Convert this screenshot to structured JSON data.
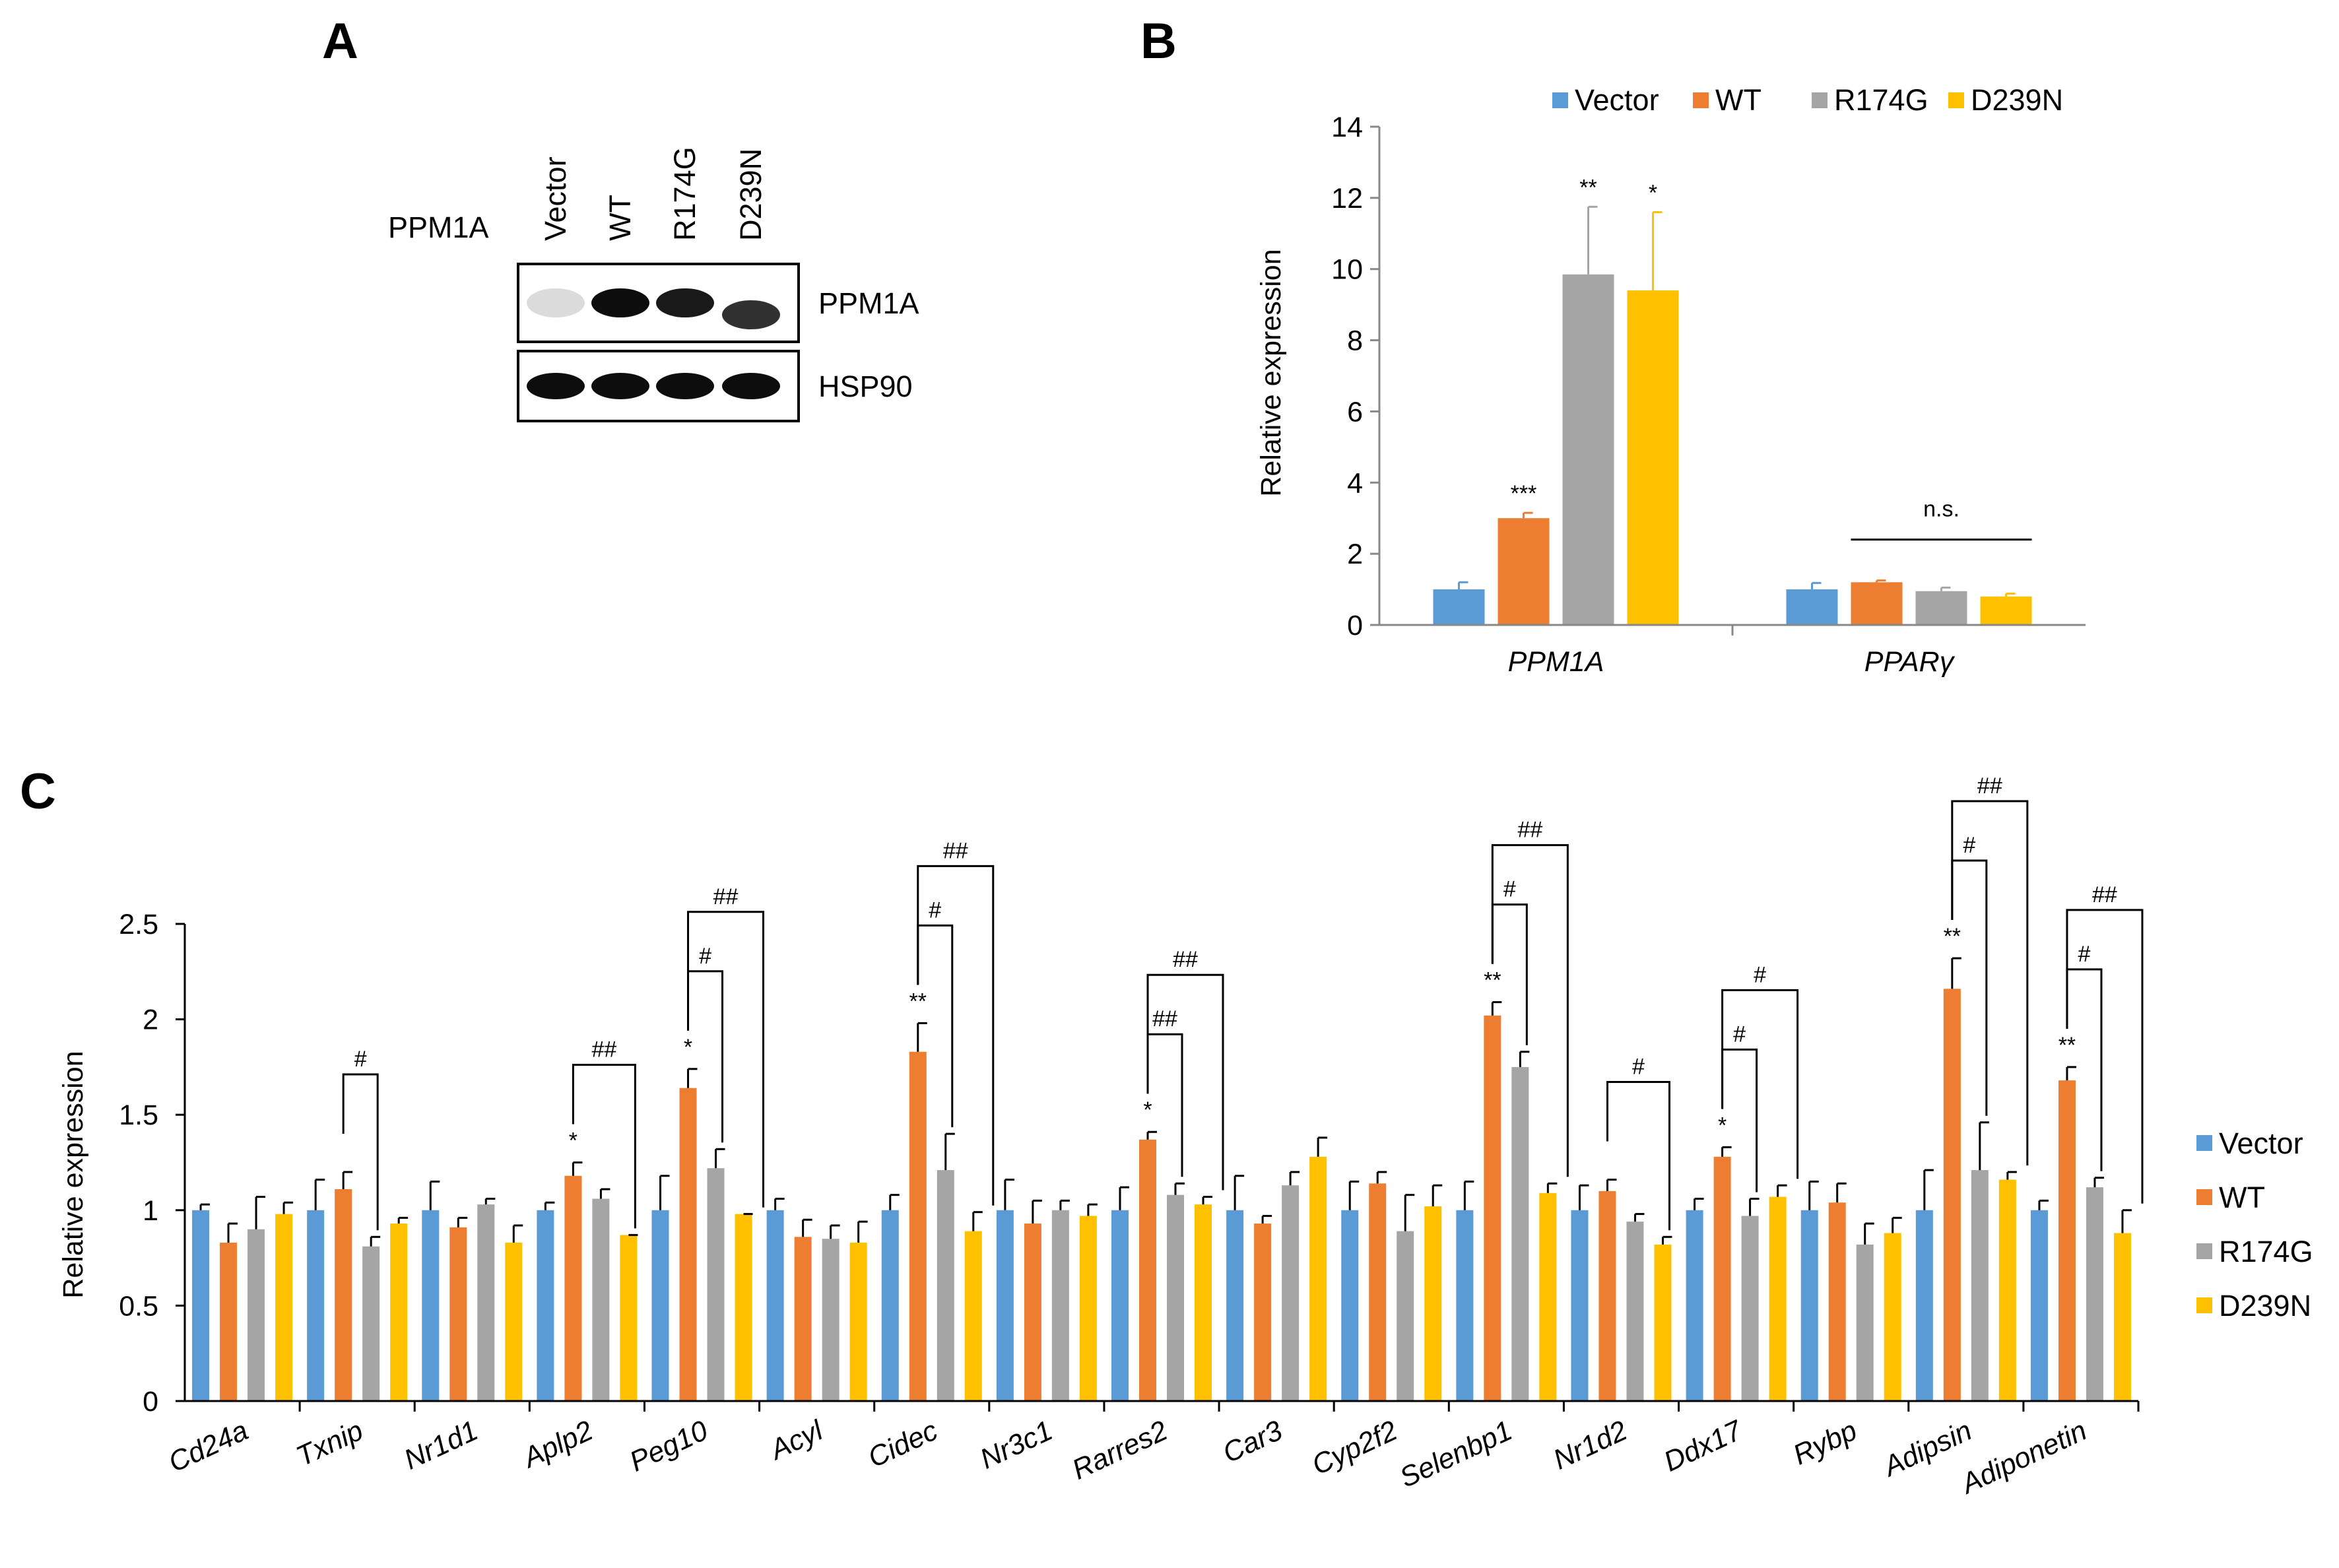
{
  "colors": {
    "Vector": "#5B9BD5",
    "WT": "#ED7D31",
    "R174G": "#A5A5A5",
    "D239N": "#FFC000"
  },
  "panel_a": {
    "letter": "A",
    "row_label": "PPM1A",
    "lanes": [
      "Vector",
      "WT",
      "R174G",
      "D239N"
    ],
    "blots": [
      {
        "label": "PPM1A",
        "intensity": [
          0.15,
          1.0,
          0.95,
          0.85
        ]
      },
      {
        "label": "HSP90",
        "intensity": [
          1.0,
          1.0,
          1.0,
          1.0
        ]
      }
    ]
  },
  "chart_data": [
    {
      "panel": "B",
      "type": "bar",
      "ylabel": "Relative expression",
      "ylim": [
        0,
        14
      ],
      "yticks": [
        0,
        2,
        4,
        6,
        8,
        10,
        12,
        14
      ],
      "ytick_labels": [
        "0",
        "2",
        "4",
        "6",
        "8",
        "10",
        "12",
        "14"
      ],
      "categories": [
        "PPM1A",
        "PPARγ"
      ],
      "legend_position": "top",
      "series": [
        {
          "name": "Vector",
          "values": [
            1.0,
            1.0
          ],
          "errors": [
            0.2,
            0.18
          ]
        },
        {
          "name": "WT",
          "values": [
            3.0,
            1.2
          ],
          "errors": [
            0.15,
            0.05
          ]
        },
        {
          "name": "R174G",
          "values": [
            9.85,
            0.95
          ],
          "errors": [
            1.9,
            0.1
          ]
        },
        {
          "name": "D239N",
          "values": [
            9.4,
            0.8
          ],
          "errors": [
            2.2,
            0.08
          ]
        }
      ],
      "annotations": [
        {
          "text": "***",
          "category": 0,
          "series": 1
        },
        {
          "text": "**",
          "category": 0,
          "series": 2
        },
        {
          "text": "*",
          "category": 0,
          "series": 3
        },
        {
          "text": "n.s.",
          "category": 1,
          "type": "line",
          "from_series": 1,
          "to_series": 3,
          "y": 2.4
        }
      ]
    },
    {
      "panel": "C",
      "type": "bar",
      "ylabel": "Relative expression",
      "ylim": [
        0,
        2.5
      ],
      "yticks": [
        0,
        0.5,
        1,
        1.5,
        2,
        2.5
      ],
      "ytick_labels": [
        "0",
        "0.5",
        "1",
        "1.5",
        "2",
        "2.5"
      ],
      "categories": [
        "Cd24a",
        "Txnip",
        "Nr1d1",
        "Aplp2",
        "Peg10",
        "Acyl",
        "Cidec",
        "Nr3c1",
        "Rarres2",
        "Car3",
        "Cyp2f2",
        "Selenbp1",
        "Nr1d2",
        "Ddx17",
        "Rybp",
        "Adipsin",
        "Adiponetin"
      ],
      "legend_position": "right",
      "series": [
        {
          "name": "Vector",
          "values": [
            1.0,
            1.0,
            1.0,
            1.0,
            1.0,
            1.0,
            1.0,
            1.0,
            1.0,
            1.0,
            1.0,
            1.0,
            1.0,
            1.0,
            1.0,
            1.0,
            1.0
          ],
          "errors": [
            0.03,
            0.16,
            0.15,
            0.04,
            0.18,
            0.06,
            0.08,
            0.16,
            0.12,
            0.18,
            0.15,
            0.15,
            0.13,
            0.06,
            0.15,
            0.21,
            0.05
          ]
        },
        {
          "name": "WT",
          "values": [
            0.83,
            1.11,
            0.91,
            1.18,
            1.64,
            0.86,
            1.83,
            0.93,
            1.37,
            0.93,
            1.14,
            2.02,
            1.1,
            1.28,
            1.04,
            2.16,
            1.68
          ],
          "errors": [
            0.1,
            0.09,
            0.05,
            0.07,
            0.1,
            0.09,
            0.15,
            0.12,
            0.04,
            0.04,
            0.06,
            0.07,
            0.06,
            0.05,
            0.1,
            0.16,
            0.07
          ]
        },
        {
          "name": "R174G",
          "values": [
            0.9,
            0.81,
            1.03,
            1.06,
            1.22,
            0.85,
            1.21,
            1.0,
            1.08,
            1.13,
            0.89,
            1.75,
            0.94,
            0.97,
            0.82,
            1.21,
            1.12
          ],
          "errors": [
            0.17,
            0.05,
            0.03,
            0.05,
            0.1,
            0.07,
            0.19,
            0.05,
            0.06,
            0.07,
            0.19,
            0.08,
            0.04,
            0.09,
            0.11,
            0.25,
            0.05
          ]
        },
        {
          "name": "D239N",
          "values": [
            0.98,
            0.93,
            0.83,
            0.87,
            0.98,
            0.83,
            0.89,
            0.97,
            1.03,
            1.28,
            1.02,
            1.09,
            0.82,
            1.07,
            0.88,
            1.16,
            0.88
          ],
          "errors": [
            0.06,
            0.03,
            0.09,
            0.0,
            0.0,
            0.11,
            0.1,
            0.06,
            0.04,
            0.1,
            0.11,
            0.05,
            0.04,
            0.06,
            0.08,
            0.04,
            0.12
          ]
        }
      ],
      "stars": [
        {
          "category": 3,
          "text": "*"
        },
        {
          "category": 4,
          "text": "*"
        },
        {
          "category": 6,
          "text": "**"
        },
        {
          "category": 8,
          "text": "*"
        },
        {
          "category": 11,
          "text": "**"
        },
        {
          "category": 13,
          "text": "*"
        },
        {
          "category": 15,
          "text": "**"
        },
        {
          "category": 16,
          "text": "**"
        }
      ],
      "brackets": [
        {
          "category": 1,
          "from": 1,
          "to": 2,
          "text": "#",
          "level": 0
        },
        {
          "category": 3,
          "from": 1,
          "to": 3,
          "text": "##",
          "level": 0
        },
        {
          "category": 4,
          "from": 1,
          "to": 2,
          "text": "#",
          "level": 0
        },
        {
          "category": 4,
          "from": 1,
          "to": 3,
          "text": "##",
          "level": 1
        },
        {
          "category": 6,
          "from": 1,
          "to": 2,
          "text": "#",
          "level": 0
        },
        {
          "category": 6,
          "from": 1,
          "to": 3,
          "text": "##",
          "level": 1
        },
        {
          "category": 8,
          "from": 1,
          "to": 2,
          "text": "##",
          "level": 0
        },
        {
          "category": 8,
          "from": 1,
          "to": 3,
          "text": "##",
          "level": 1
        },
        {
          "category": 11,
          "from": 1,
          "to": 2,
          "text": "#",
          "level": 0
        },
        {
          "category": 11,
          "from": 1,
          "to": 3,
          "text": "##",
          "level": 1
        },
        {
          "category": 12,
          "from": 1,
          "to": 3,
          "text": "#",
          "level": 0
        },
        {
          "category": 13,
          "from": 1,
          "to": 2,
          "text": "#",
          "level": 0
        },
        {
          "category": 13,
          "from": 1,
          "to": 3,
          "text": "#",
          "level": 1
        },
        {
          "category": 15,
          "from": 1,
          "to": 2,
          "text": "#",
          "level": 0
        },
        {
          "category": 15,
          "from": 1,
          "to": 3,
          "text": "##",
          "level": 1
        },
        {
          "category": 16,
          "from": 1,
          "to": 2,
          "text": "#",
          "level": 0
        },
        {
          "category": 16,
          "from": 1,
          "to": 3,
          "text": "##",
          "level": 1
        }
      ]
    }
  ]
}
